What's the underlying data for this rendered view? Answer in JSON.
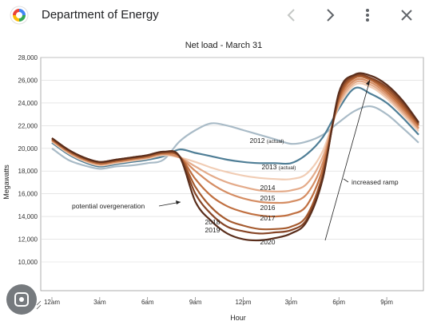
{
  "header": {
    "title": "Department of Energy",
    "icons": [
      "app-logo-icon",
      "chevron-left-icon",
      "chevron-right-icon",
      "more-vert-icon",
      "close-icon"
    ]
  },
  "lens": {
    "icon": "lens-search-icon"
  },
  "chart_data": {
    "type": "line",
    "title": "Net load - March 31",
    "xlabel": "Hour",
    "ylabel": "Megawatts",
    "ylim": [
      10000,
      28000
    ],
    "y_ticks": [
      "10,000",
      "12,000",
      "14,000",
      "16,000",
      "18,000",
      "20,000",
      "22,000",
      "24,000",
      "26,000",
      "28,000"
    ],
    "x_tick_labels": [
      "12am",
      "3am",
      "6am",
      "9am",
      "12pm",
      "3pm",
      "6pm",
      "9pm"
    ],
    "x_tick_hours": [
      0,
      3,
      6,
      9,
      12,
      15,
      18,
      21
    ],
    "x_range": [
      0,
      23
    ],
    "hours": [
      0,
      1,
      2,
      3,
      4,
      5,
      6,
      7,
      8,
      9,
      10,
      11,
      12,
      13,
      14,
      15,
      16,
      17,
      18,
      19,
      20,
      21,
      22,
      23
    ],
    "series": [
      {
        "name": "2012 (actual)",
        "color": "#a9bbc7",
        "values": [
          20000,
          19000,
          18500,
          18200,
          18400,
          18500,
          18700,
          19000,
          20600,
          21600,
          22200,
          22000,
          21600,
          21200,
          20800,
          20400,
          20600,
          21200,
          22300,
          23300,
          23700,
          23000,
          21800,
          20500
        ]
      },
      {
        "name": "2013 (actual)",
        "color": "#4f7e96",
        "values": [
          20500,
          19500,
          18800,
          18400,
          18600,
          18800,
          19000,
          19300,
          19900,
          19600,
          19300,
          19000,
          18800,
          18700,
          18700,
          18700,
          19500,
          21000,
          23500,
          25300,
          24800,
          24000,
          22700,
          21200
        ]
      },
      {
        "name": "2014",
        "color": "#f1cdb5",
        "values": [
          20600,
          19600,
          18900,
          18500,
          18700,
          18900,
          19100,
          19400,
          19200,
          18800,
          18300,
          17900,
          17600,
          17400,
          17300,
          17300,
          17800,
          19800,
          23700,
          25600,
          25400,
          24400,
          23000,
          21500
        ]
      },
      {
        "name": "2015",
        "color": "#e4ab8a",
        "values": [
          20700,
          19700,
          19000,
          18600,
          18800,
          19000,
          19200,
          19500,
          19200,
          18400,
          17600,
          17000,
          16600,
          16300,
          16200,
          16300,
          16900,
          19300,
          23900,
          25800,
          25600,
          24600,
          23200,
          21700
        ]
      },
      {
        "name": "2016",
        "color": "#d58d63",
        "values": [
          20700,
          19700,
          19000,
          18600,
          18800,
          19000,
          19200,
          19500,
          19200,
          18000,
          16900,
          16100,
          15600,
          15300,
          15200,
          15300,
          16000,
          18800,
          24100,
          26000,
          25800,
          24800,
          23400,
          21800
        ]
      },
      {
        "name": "2017",
        "color": "#c06f40",
        "values": [
          20800,
          19800,
          19100,
          18700,
          18900,
          19100,
          19300,
          19600,
          19300,
          17300,
          15800,
          14900,
          14400,
          14100,
          14000,
          14200,
          15000,
          18300,
          24300,
          26200,
          26000,
          25000,
          23600,
          22000
        ]
      },
      {
        "name": "2018",
        "color": "#a55a2e",
        "values": [
          20800,
          19800,
          19100,
          18700,
          18900,
          19100,
          19300,
          19600,
          19300,
          16600,
          14800,
          13700,
          13200,
          12900,
          12900,
          13100,
          14100,
          17800,
          24500,
          26300,
          26100,
          25200,
          23800,
          22100
        ]
      },
      {
        "name": "2019",
        "color": "#864526",
        "values": [
          20900,
          19900,
          19200,
          18800,
          19000,
          19200,
          19400,
          19700,
          19300,
          16000,
          14200,
          13100,
          12700,
          12500,
          12600,
          12800,
          13800,
          17600,
          24700,
          26400,
          26200,
          25400,
          24000,
          22200
        ]
      },
      {
        "name": "2020",
        "color": "#5a2e1c",
        "values": [
          20900,
          19900,
          19200,
          18800,
          19000,
          19200,
          19400,
          19700,
          19300,
          15300,
          13600,
          12500,
          12000,
          11900,
          12100,
          12500,
          13600,
          17400,
          24900,
          26500,
          26400,
          25600,
          24200,
          22300
        ]
      }
    ],
    "annotations": [
      {
        "text": "potential overgeneration"
      },
      {
        "text": "increased ramp"
      }
    ],
    "grid": true,
    "legend": "inline labels"
  }
}
